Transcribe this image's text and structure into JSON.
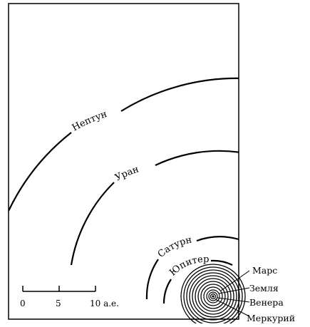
{
  "orbits": [
    {
      "name": "Нептун",
      "radius_au": 30.1
    },
    {
      "name": "Уран",
      "radius_au": 19.2
    },
    {
      "name": "Сатурн",
      "radius_au": 9.5
    },
    {
      "name": "Юпитер",
      "radius_au": 5.2
    }
  ],
  "inner_planets": [
    "Марс",
    "Земля",
    "Венера",
    "Меркурий"
  ],
  "scale": {
    "ticks": [
      "0",
      "5",
      "10 а.е."
    ],
    "values_au": [
      0,
      5,
      10
    ]
  },
  "colors": {
    "line": "#000000",
    "background": "#ffffff"
  }
}
